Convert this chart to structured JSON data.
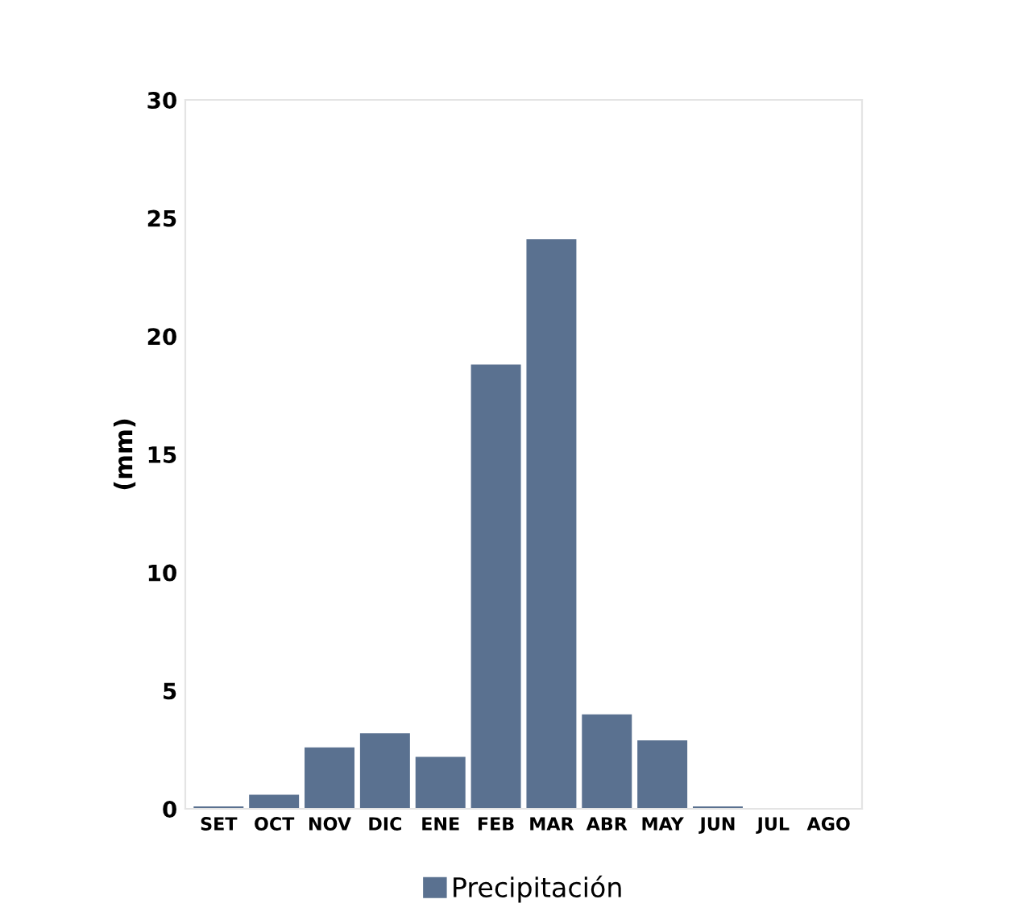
{
  "chart_data": {
    "type": "bar",
    "ylabel": "(mm)",
    "categories": [
      "SET",
      "OCT",
      "NOV",
      "DIC",
      "ENE",
      "FEB",
      "MAR",
      "ABR",
      "MAY",
      "JUN",
      "JUL",
      "AGO"
    ],
    "series": [
      {
        "name": "Precipitación",
        "color": "#5a7190",
        "values": [
          0.1,
          0.6,
          2.6,
          3.2,
          2.2,
          18.8,
          24.1,
          4.0,
          2.9,
          0.1,
          0,
          0
        ]
      }
    ],
    "ylim": [
      0,
      30
    ],
    "yticks": [
      0,
      5,
      10,
      15,
      20,
      25,
      30
    ],
    "grid": false,
    "legend": "bottom"
  }
}
